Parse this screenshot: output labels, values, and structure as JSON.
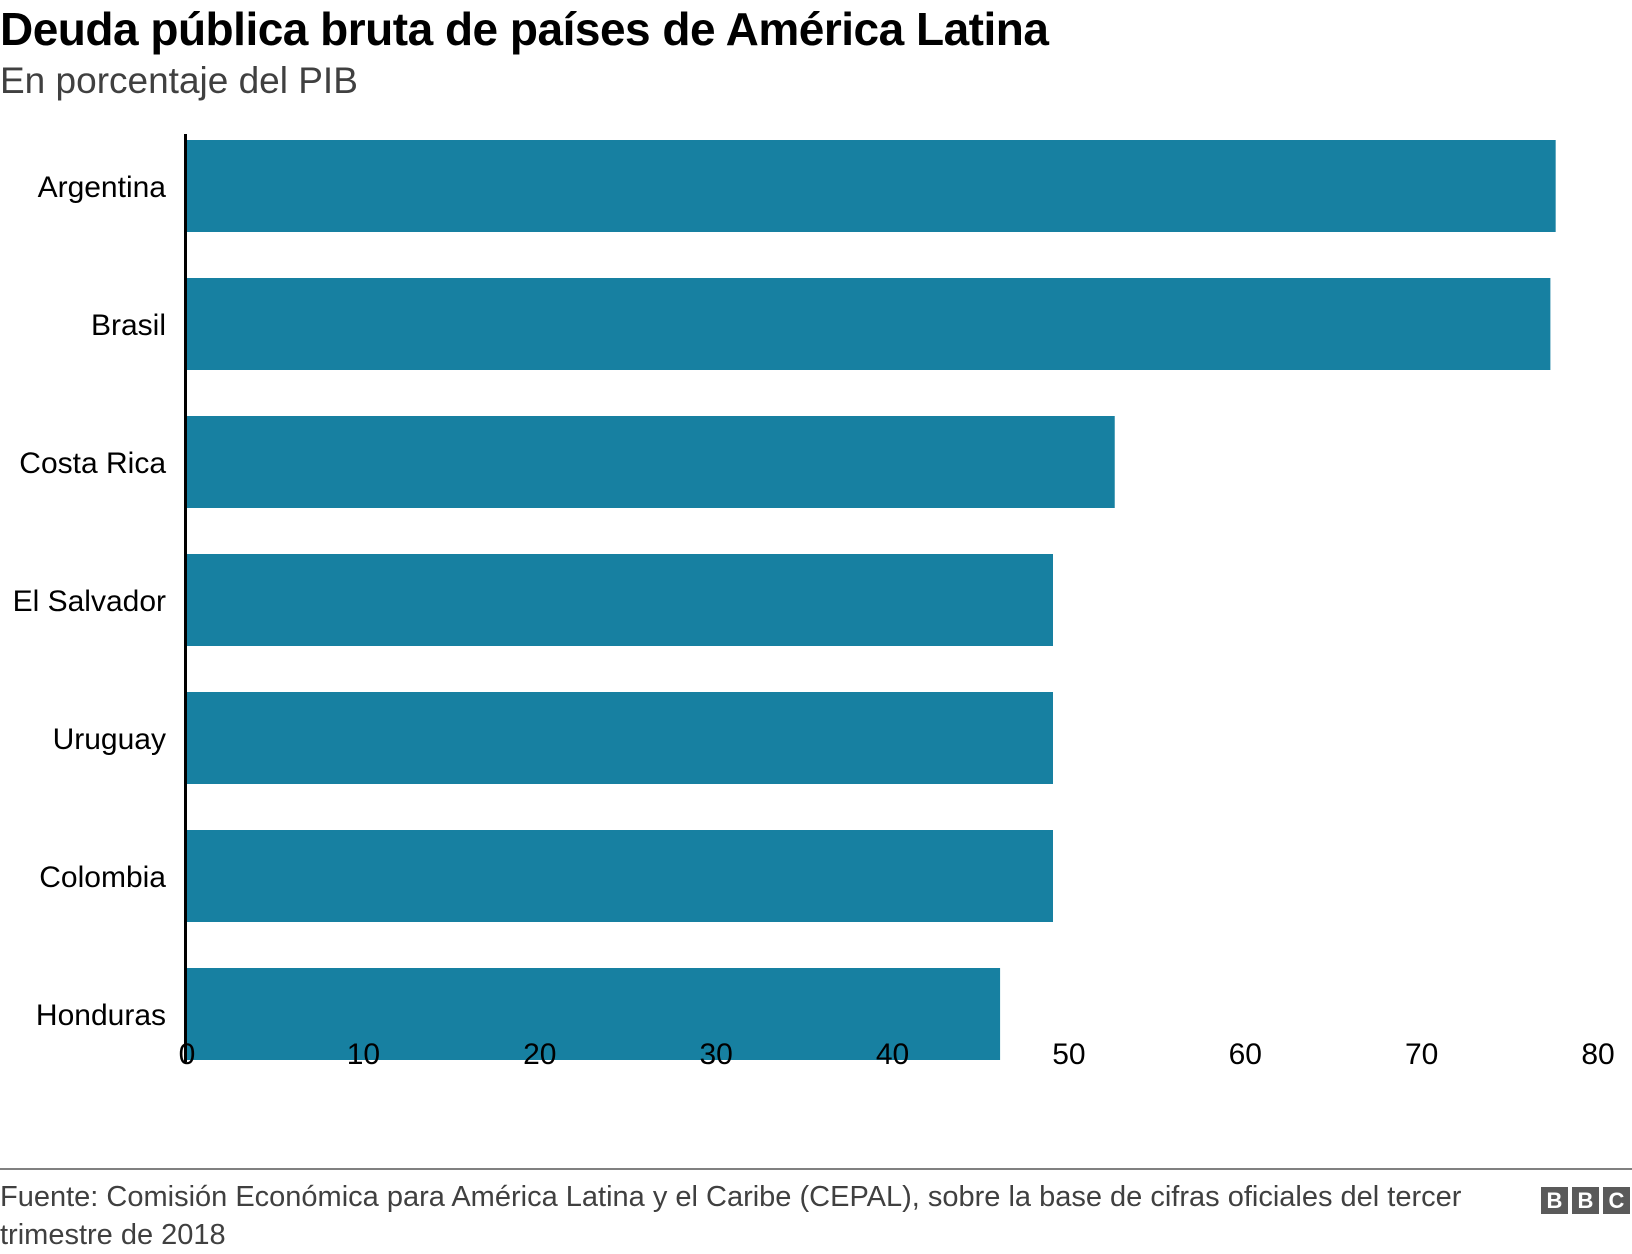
{
  "header": {
    "title": "Deuda pública bruta de países de América Latina",
    "subtitle": "En porcentaje del PIB"
  },
  "footer": {
    "source": "Fuente: Comisión Económica para América Latina y el Caribe (CEPAL), sobre la base de cifras oficiales del tercer trimestre de 2018",
    "logo_letters": [
      "B",
      "B",
      "C"
    ]
  },
  "colors": {
    "bar": "#1780a1",
    "axis": "#000000",
    "rule": "#808080"
  },
  "chart_data": {
    "type": "bar",
    "orientation": "horizontal",
    "title": "Deuda pública bruta de países de América Latina",
    "subtitle": "En porcentaje del PIB",
    "xlabel": "",
    "ylabel": "",
    "categories": [
      "Argentina",
      "Brasil",
      "Costa Rica",
      "El Salvador",
      "Uruguay",
      "Colombia",
      "Honduras"
    ],
    "values": [
      77.6,
      77.3,
      52.6,
      49.1,
      49.1,
      49.1,
      46.1
    ],
    "xlim": [
      0,
      80
    ],
    "xticks": [
      0,
      10,
      20,
      30,
      40,
      50,
      60,
      70,
      80
    ],
    "xtick_labels": [
      "0",
      "10",
      "20",
      "30",
      "40",
      "50",
      "60",
      "70",
      "80"
    ],
    "grid": false,
    "legend": "none"
  }
}
